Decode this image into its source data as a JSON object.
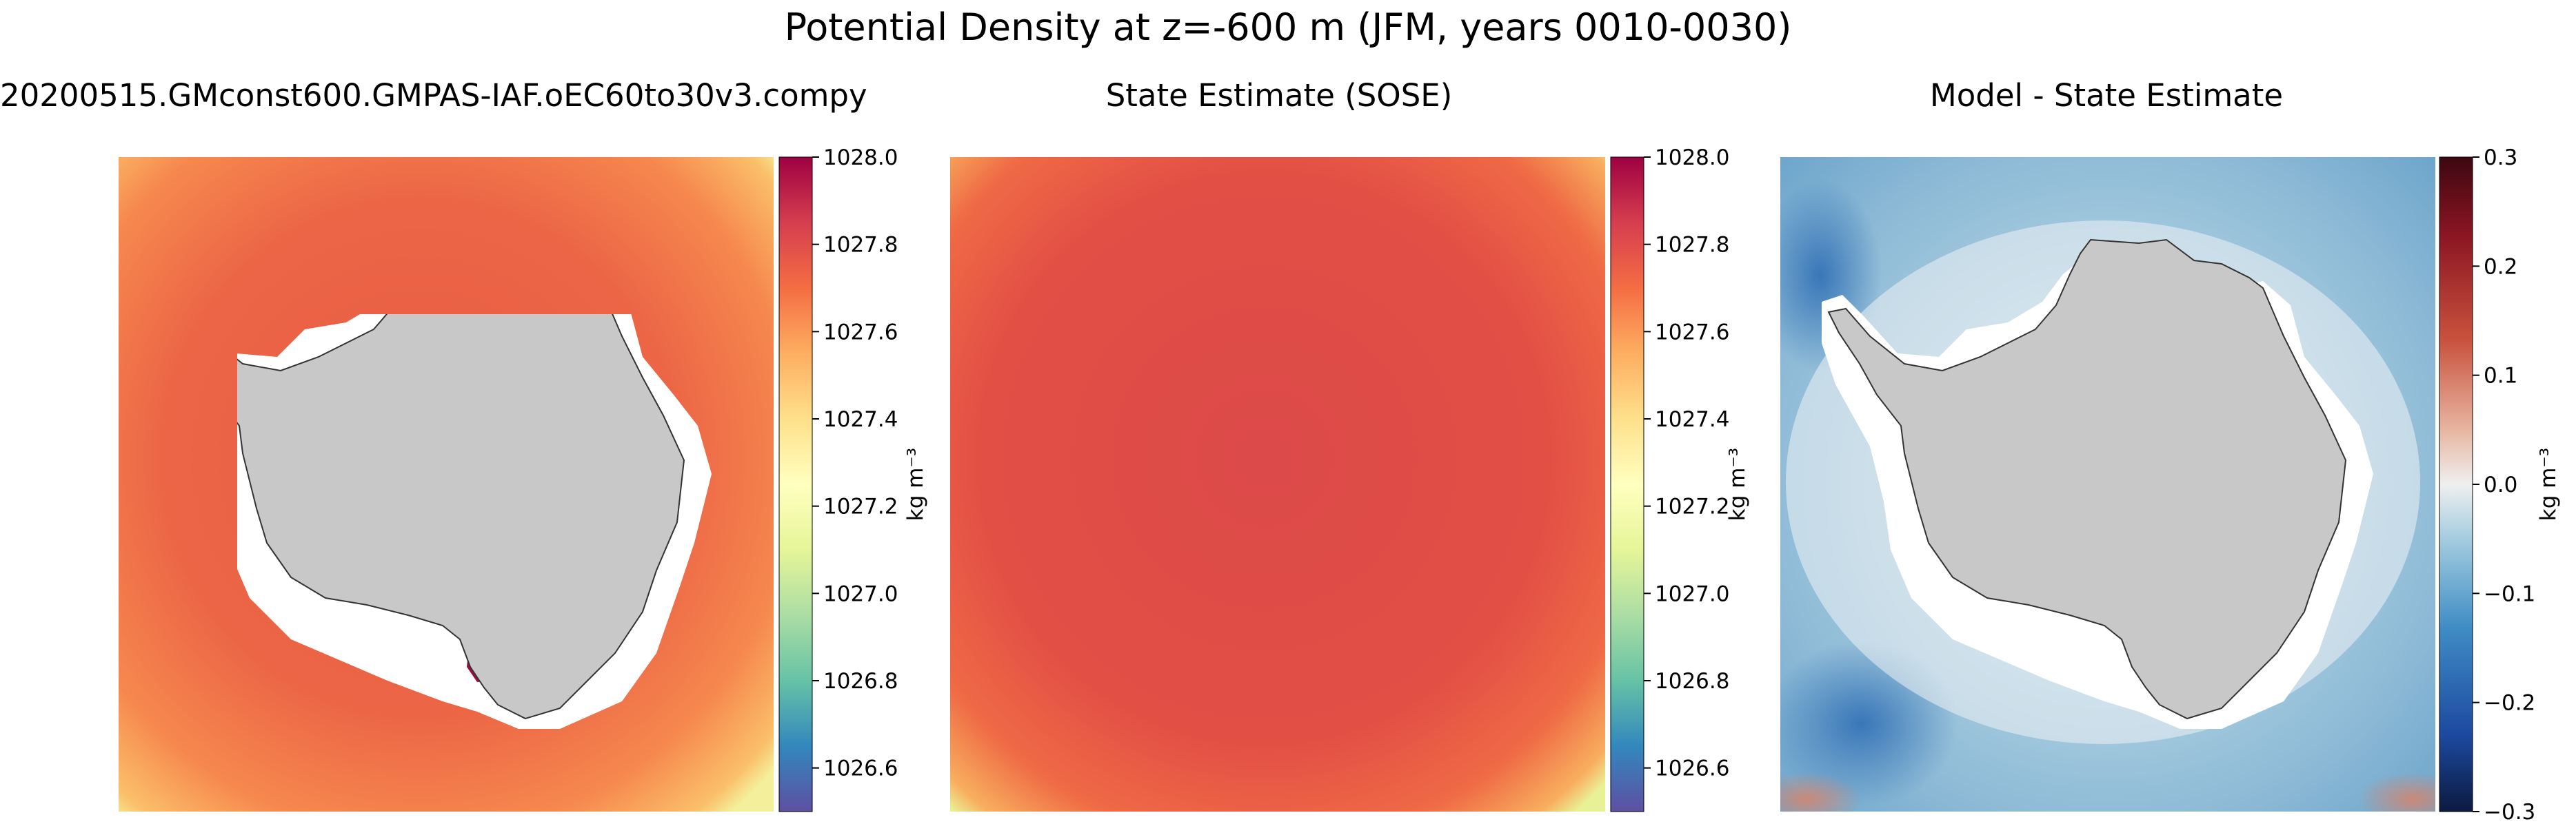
{
  "suptitle": "Potential Density at z=-600 m (JFM, years 0010-0030)",
  "chart_data": [
    {
      "type": "heatmap",
      "title": "20200515.GMconst600.GMPAS-IAF.oEC60to30v3.compy",
      "colormap": "Spectral_r",
      "colorbar": {
        "label": "kg m⁻³",
        "vmin": 1026.5,
        "vmax": 1028.0,
        "ticks": [
          1026.6,
          1026.8,
          1027.0,
          1027.2,
          1027.4,
          1027.6,
          1027.8,
          1028.0
        ],
        "tick_labels": [
          "1026.6",
          "1026.8",
          "1027.0",
          "1027.2",
          "1027.4",
          "1027.6",
          "1027.8",
          "1028.0"
        ]
      },
      "field_description": "south polar stereographic map; open ocean values mostly 1027.7-1027.9, lower (~1027.2-1027.5) toward the outer left/lower-left corner; Antarctica land masked grey; high values (~1028.0) in a small patch near the Ross Sea"
    },
    {
      "type": "heatmap",
      "title": "State Estimate (SOSE)",
      "colormap": "Spectral_r",
      "colorbar": {
        "label": "kg m⁻³",
        "vmin": 1026.5,
        "vmax": 1028.0,
        "ticks": [
          1026.6,
          1026.8,
          1027.0,
          1027.2,
          1027.4,
          1027.6,
          1027.8,
          1028.0
        ],
        "tick_labels": [
          "1026.6",
          "1026.8",
          "1027.0",
          "1027.2",
          "1027.4",
          "1027.6",
          "1027.8",
          "1028.0"
        ]
      },
      "field_description": "south polar stereographic map; open ocean values ~1027.8-1027.9, lower toward left corners; Antarctica masked grey"
    },
    {
      "type": "heatmap",
      "title": "Model - State Estimate",
      "colormap": "RdBu_r",
      "colorbar": {
        "label": "kg m⁻³",
        "vmin": -0.3,
        "vmax": 0.3,
        "ticks": [
          -0.3,
          -0.2,
          -0.1,
          0.0,
          0.1,
          0.2,
          0.3
        ],
        "tick_labels": [
          "−0.3",
          "−0.2",
          "−0.1",
          "0.0",
          "0.1",
          "0.2",
          "0.3"
        ]
      },
      "field_description": "difference map; mostly small negative values (-0.05 to -0.15), more negative (~-0.2) in the left/lower-left; near zero next to the continent; positive (~0.2) patch near the Ross Sea"
    }
  ]
}
